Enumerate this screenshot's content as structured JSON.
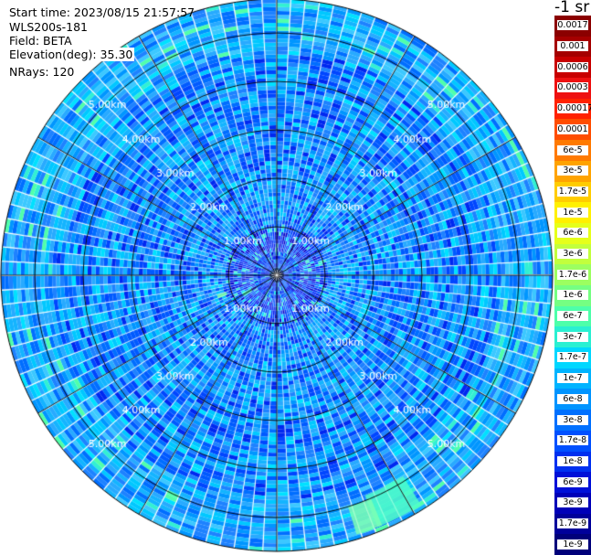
{
  "header": {
    "start_time": "Start time: 2023/08/15 21:57:57",
    "instrument": "WLS200s-181",
    "field": "Field: BETA",
    "elevation": "Elevation(deg): 35.30",
    "nrays": "NRays: 120"
  },
  "colorbar": {
    "unit_title": "-1 sr",
    "labels": [
      "0.0017",
      "0.001",
      "0.0006",
      "0.0003",
      "0.00017",
      "0.0001",
      "6e-5",
      "3e-5",
      "1.7e-5",
      "1e-5",
      "6e-6",
      "3e-6",
      "1.7e-6",
      "1e-6",
      "6e-7",
      "3e-7",
      "1.7e-7",
      "1e-7",
      "6e-8",
      "3e-8",
      "1.7e-8",
      "1e-8",
      "6e-9",
      "3e-9",
      "1.7e-9",
      "1e-9"
    ],
    "colors": [
      "#8b0000",
      "#a50000",
      "#c80000",
      "#ee1111",
      "#ff2200",
      "#ff4d00",
      "#ff7a00",
      "#ffa300",
      "#ffcc00",
      "#fff000",
      "#e6ff1a",
      "#c2ff3d",
      "#9cff60",
      "#75ff82",
      "#4dffaa",
      "#2af0d2",
      "#00d7ff",
      "#00b4ff",
      "#0094ff",
      "#0070ff",
      "#0050ff",
      "#0030f0",
      "#0010d8",
      "#0000b8",
      "#00009a",
      "#00007a"
    ]
  },
  "chart_data": {
    "type": "heatmap",
    "subtype": "ppi-polar",
    "field": "BETA",
    "elevation_deg": 35.3,
    "n_rays": 120,
    "range_rings_km": [
      1,
      2,
      3,
      4,
      5
    ],
    "range_ring_labels": [
      "1.00km",
      "2.00km",
      "3.00km",
      "4.00km",
      "5.00km"
    ],
    "max_range_km": 5.7,
    "spoke_angles_deg": [
      0,
      30,
      60,
      90,
      120,
      150,
      180,
      210,
      240,
      270,
      300,
      330
    ],
    "color_scale": "log",
    "color_range": [
      1e-09,
      0.0017
    ],
    "dominant_value": "1e-8"
  }
}
